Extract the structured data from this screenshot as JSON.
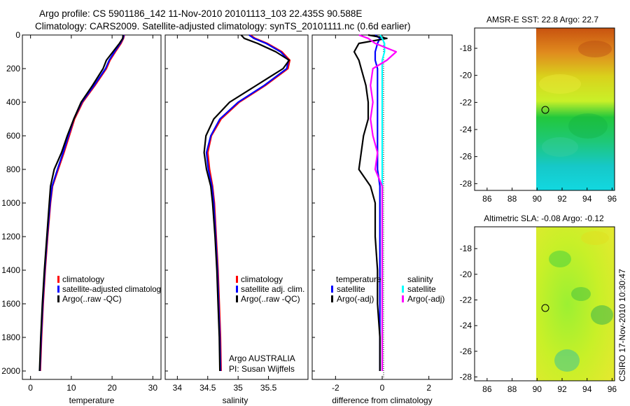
{
  "header": {
    "line1": "Argo profile: CS 5901186_142 11-Nov-2010 20101113_103 22.435S 90.588E",
    "line2": "Climatology: CARS2009. Satellite-adjusted climatology: synTS_20101111.nc (0.6d earlier)"
  },
  "colors": {
    "red": "#ff0000",
    "blue": "#0000ff",
    "black": "#000000",
    "cyan": "#00ffff",
    "magenta": "#ff00ff"
  },
  "chart_data": [
    {
      "type": "line",
      "name": "temperature",
      "xlabel": "temperature",
      "xlim": [
        -2,
        32
      ],
      "ylim": [
        0,
        2050
      ],
      "xticks": [
        "0",
        "10",
        "20",
        "30"
      ],
      "yticks": [
        "0",
        "200",
        "400",
        "600",
        "800",
        "1000",
        "1200",
        "1400",
        "1600",
        "1800",
        "2000"
      ],
      "depth": [
        0,
        20,
        50,
        100,
        150,
        200,
        300,
        400,
        500,
        600,
        700,
        800,
        900,
        1000,
        1200,
        1400,
        1600,
        1800,
        2000
      ],
      "series": [
        {
          "name": "climatology",
          "color": "#ff0000",
          "values": [
            23.0,
            22.8,
            22.2,
            20.8,
            19.5,
            18.6,
            15.8,
            12.8,
            10.8,
            9.5,
            8.2,
            6.8,
            5.4,
            4.9,
            4.2,
            3.6,
            3.1,
            2.7,
            2.4
          ]
        },
        {
          "name": "satellite-adjusted climatology",
          "color": "#0000ff",
          "values": [
            22.9,
            22.7,
            22.0,
            20.6,
            19.3,
            18.4,
            15.6,
            12.6,
            10.6,
            9.3,
            8.0,
            6.6,
            5.3,
            4.8,
            4.1,
            3.5,
            3.0,
            2.6,
            2.3
          ]
        },
        {
          "name": "Argo(..raw -QC)",
          "color": "#000000",
          "values": [
            22.7,
            22.6,
            21.8,
            20.2,
            18.6,
            17.8,
            15.2,
            12.4,
            10.6,
            9.0,
            7.6,
            5.8,
            4.9,
            4.6,
            4.0,
            3.4,
            2.9,
            2.5,
            2.2
          ]
        }
      ],
      "legend": [
        "climatology",
        "satellite-adjusted climatolog",
        "Argo(..raw -QC)"
      ]
    },
    {
      "type": "line",
      "name": "salinity",
      "xlabel": "salinity",
      "xlim": [
        33.8,
        36.15
      ],
      "ylim": [
        0,
        2050
      ],
      "xticks": [
        "34",
        "34.5",
        "35",
        "35.5"
      ],
      "depth": [
        0,
        20,
        50,
        100,
        150,
        200,
        300,
        400,
        500,
        600,
        700,
        800,
        900,
        1000,
        1200,
        1400,
        1600,
        1800,
        2000
      ],
      "series": [
        {
          "name": "climatology",
          "color": "#ff0000",
          "values": [
            35.2,
            35.28,
            35.48,
            35.72,
            35.85,
            35.82,
            35.45,
            35.02,
            34.72,
            34.56,
            34.5,
            34.53,
            34.58,
            34.61,
            34.64,
            34.67,
            34.69,
            34.71,
            34.72
          ]
        },
        {
          "name": "satellite adj. clim.",
          "color": "#0000ff",
          "values": [
            35.18,
            35.26,
            35.46,
            35.7,
            35.83,
            35.8,
            35.43,
            35.0,
            34.7,
            34.55,
            34.48,
            34.51,
            34.57,
            34.6,
            34.63,
            34.66,
            34.68,
            34.7,
            34.71
          ]
        },
        {
          "name": "Argo(..raw -QC)",
          "color": "#000000",
          "values": [
            35.05,
            35.1,
            35.32,
            35.62,
            35.84,
            35.74,
            35.3,
            34.86,
            34.6,
            34.47,
            34.44,
            34.48,
            34.55,
            34.58,
            34.62,
            34.65,
            34.67,
            34.69,
            34.7
          ]
        }
      ],
      "legend": [
        "climatology",
        "satellite adj. clim.",
        "Argo(..raw -QC)"
      ],
      "annotation": {
        "line1": "Argo AUSTRALIA",
        "line2": "PI: Susan Wijffels"
      }
    },
    {
      "type": "line",
      "name": "difference",
      "xlabel": "difference from climatology",
      "xlim": [
        -3,
        3
      ],
      "ylim": [
        0,
        2050
      ],
      "xticks": [
        "-2",
        "0",
        "2"
      ],
      "depth": [
        0,
        20,
        50,
        100,
        150,
        200,
        300,
        400,
        500,
        600,
        700,
        800,
        900,
        1000,
        1200,
        1400,
        1600,
        1800,
        2000
      ],
      "series": [
        {
          "name": "temperature satellite",
          "color": "#0000ff",
          "values": [
            -0.3,
            -0.1,
            -0.2,
            -0.3,
            -0.3,
            -0.2,
            -0.2,
            -0.2,
            -0.2,
            -0.2,
            -0.2,
            -0.2,
            -0.1,
            -0.1,
            -0.1,
            -0.1,
            -0.1,
            -0.1,
            -0.1
          ]
        },
        {
          "name": "temperature Argo(-adj)",
          "color": "#000000",
          "values": [
            -0.6,
            0.2,
            -1.0,
            -1.2,
            -1.0,
            -0.9,
            -0.7,
            -0.6,
            -0.6,
            -0.8,
            -0.9,
            -1.0,
            -0.5,
            -0.3,
            -0.3,
            -0.2,
            -0.2,
            -0.1,
            -0.1
          ]
        },
        {
          "name": "salinity satellite",
          "color": "#00ffff",
          "values": [
            -0.1,
            0.0,
            0.1,
            0.1,
            0.0,
            0.0,
            0.0,
            0.0,
            0.0,
            0.0,
            0.0,
            0.0,
            0.0,
            0.0,
            0.0,
            0.0,
            0.0,
            0.0,
            0.0
          ]
        },
        {
          "name": "salinity Argo(-adj)",
          "color": "#ff00ff",
          "values": [
            -1.0,
            -0.6,
            -0.3,
            0.6,
            0.2,
            -0.4,
            -0.5,
            -0.4,
            -0.5,
            -0.4,
            -0.2,
            -0.3,
            0.0,
            0.0,
            0.0,
            0.0,
            0.0,
            0.0,
            0.0
          ]
        }
      ],
      "legend": {
        "temperature": {
          "title": "temperature",
          "satellite": "satellite",
          "argo": "Argo(-adj)"
        },
        "salinity": {
          "title": "salinity",
          "satellite": "satellite",
          "argo": "Argo(-adj)"
        }
      }
    },
    {
      "type": "heatmap",
      "name": "sst-map",
      "title": "AMSR-E SST: 22.8 Argo: 22.7",
      "xticks": [
        "86",
        "88",
        "90",
        "92",
        "94",
        "96"
      ],
      "yticks": [
        "-18",
        "-20",
        "-22",
        "-24",
        "-26",
        "-28"
      ],
      "xlim": [
        85,
        96.2
      ],
      "ylim": [
        -28.5,
        -16.5
      ],
      "float_position": [
        90.588,
        -22.435
      ]
    },
    {
      "type": "heatmap",
      "name": "sla-map",
      "title": "Altimetric SLA: -0.08 Argo: -0.12",
      "xticks": [
        "86",
        "88",
        "90",
        "92",
        "94",
        "96"
      ],
      "yticks": [
        "-18",
        "-20",
        "-22",
        "-24",
        "-26",
        "-28"
      ],
      "xlim": [
        85,
        96.2
      ],
      "ylim": [
        -28.3,
        -16.3
      ],
      "float_position": [
        90.588,
        -22.435
      ]
    }
  ],
  "footer": {
    "stamp": "CSIRO 17-Nov-2010 10:30:47"
  }
}
